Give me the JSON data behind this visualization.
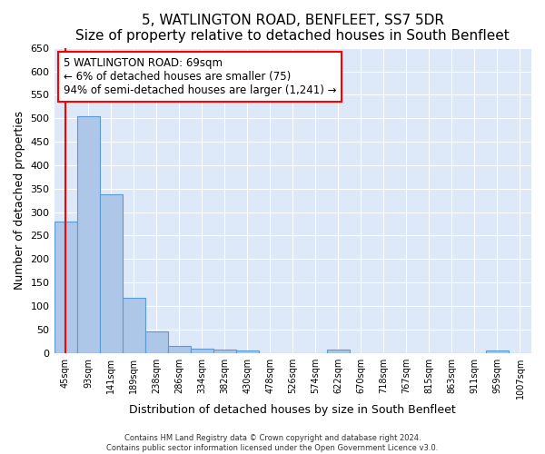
{
  "title": "5, WATLINGTON ROAD, BENFLEET, SS7 5DR",
  "subtitle": "Size of property relative to detached houses in South Benfleet",
  "xlabel": "Distribution of detached houses by size in South Benfleet",
  "ylabel": "Number of detached properties",
  "footer1": "Contains HM Land Registry data © Crown copyright and database right 2024.",
  "footer2": "Contains public sector information licensed under the Open Government Licence v3.0.",
  "categories": [
    "45sqm",
    "93sqm",
    "141sqm",
    "189sqm",
    "238sqm",
    "286sqm",
    "334sqm",
    "382sqm",
    "430sqm",
    "478sqm",
    "526sqm",
    "574sqm",
    "622sqm",
    "670sqm",
    "718sqm",
    "767sqm",
    "815sqm",
    "863sqm",
    "911sqm",
    "959sqm",
    "1007sqm"
  ],
  "values": [
    280,
    505,
    338,
    118,
    45,
    15,
    10,
    7,
    5,
    0,
    0,
    0,
    8,
    0,
    0,
    0,
    0,
    0,
    0,
    5,
    0
  ],
  "bar_color": "#aec6e8",
  "bar_edge_color": "#5b9bd5",
  "annotation_line1": "5 WATLINGTON ROAD: 69sqm",
  "annotation_line2": "← 6% of detached houses are smaller (75)",
  "annotation_line3": "94% of semi-detached houses are larger (1,241) →",
  "annotation_box_color": "white",
  "annotation_box_edge_color": "red",
  "vline_color": "red",
  "ylim": [
    0,
    650
  ],
  "yticks": [
    0,
    50,
    100,
    150,
    200,
    250,
    300,
    350,
    400,
    450,
    500,
    550,
    600,
    650
  ],
  "background_color": "#dde8f8",
  "grid_color": "white",
  "title_fontsize": 11,
  "xlabel_fontsize": 9,
  "ylabel_fontsize": 9,
  "annotation_fontsize": 8.5
}
